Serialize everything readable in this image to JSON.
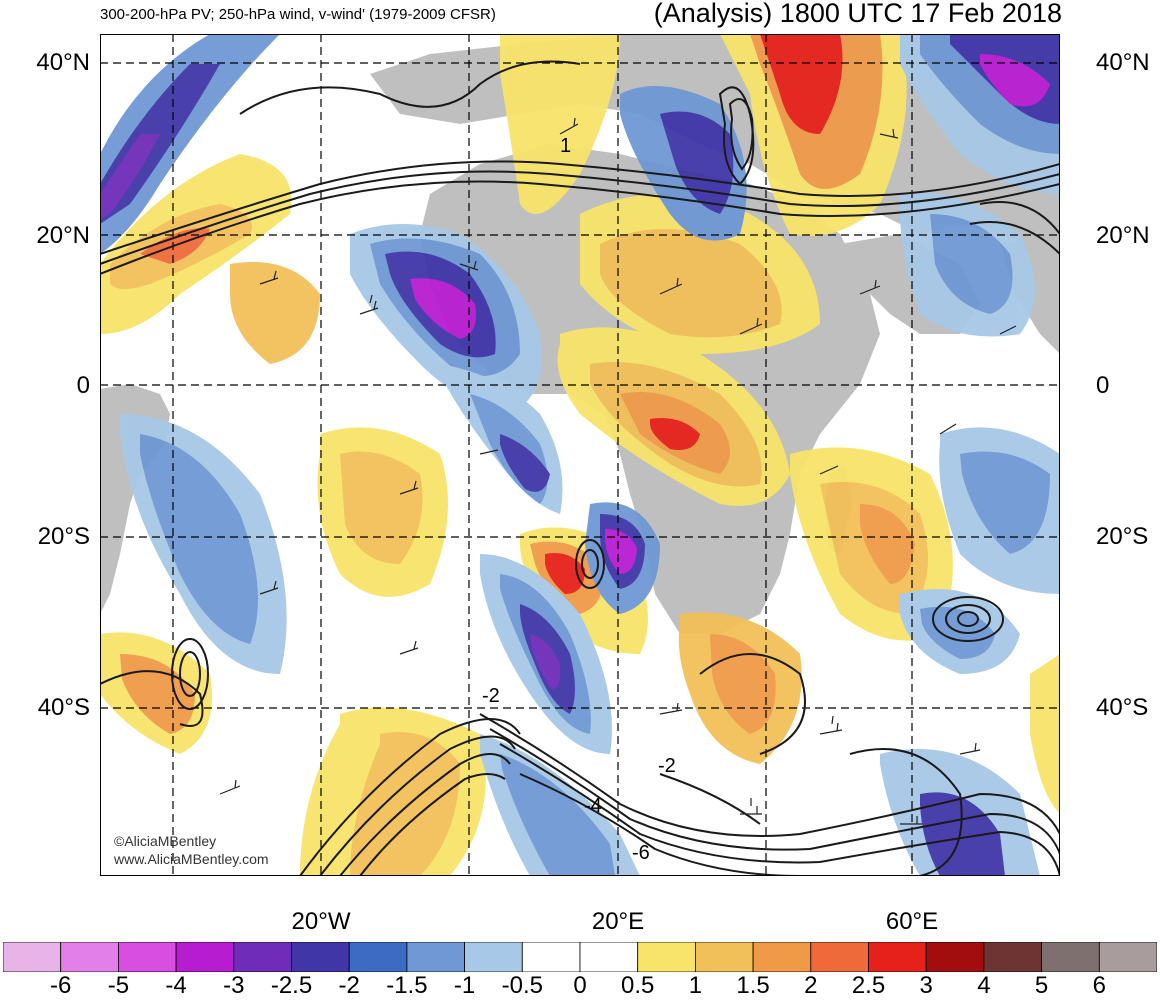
{
  "header": {
    "left": "300-200-hPa PV; 250-hPa wind, v-wind' (1979-2009 CFSR)",
    "right": "(Analysis) 1800 UTC 17 Feb 2018"
  },
  "lat_labels": [
    "40°N",
    "20°N",
    "0",
    "20°S",
    "40°S"
  ],
  "lon_labels": [
    "20°W",
    "20°E",
    "60°E"
  ],
  "credit": {
    "line1": "©AliciaMBentley",
    "line2": "www.AliciaMBentley.com"
  },
  "contour_labels": [
    "1",
    "-2",
    "-2",
    "-4",
    "-6"
  ],
  "colorbar": {
    "labels": [
      "-6",
      "-5",
      "-4",
      "-3",
      "-2.5",
      "-2",
      "-1.5",
      "-1",
      "-0.5",
      "0",
      "0.5",
      "1",
      "1.5",
      "2",
      "2.5",
      "3",
      "4",
      "5",
      "6"
    ],
    "colors": [
      "#e8b4e8",
      "#e27fe8",
      "#d84ee0",
      "#b81cd0",
      "#6e2cb8",
      "#4036a8",
      "#3d6bc4",
      "#6f98d4",
      "#a7c8e6",
      "#ffffff",
      "#ffffff",
      "#f8e46a",
      "#f2c058",
      "#f09a48",
      "#ef6a3a",
      "#e6201a",
      "#a30d0d",
      "#6e3434",
      "#7f7070",
      "#a89c9c"
    ]
  },
  "colors": {
    "land": "#bfbfbf",
    "background": "#ffffff",
    "contour": "#1a1a1a"
  }
}
